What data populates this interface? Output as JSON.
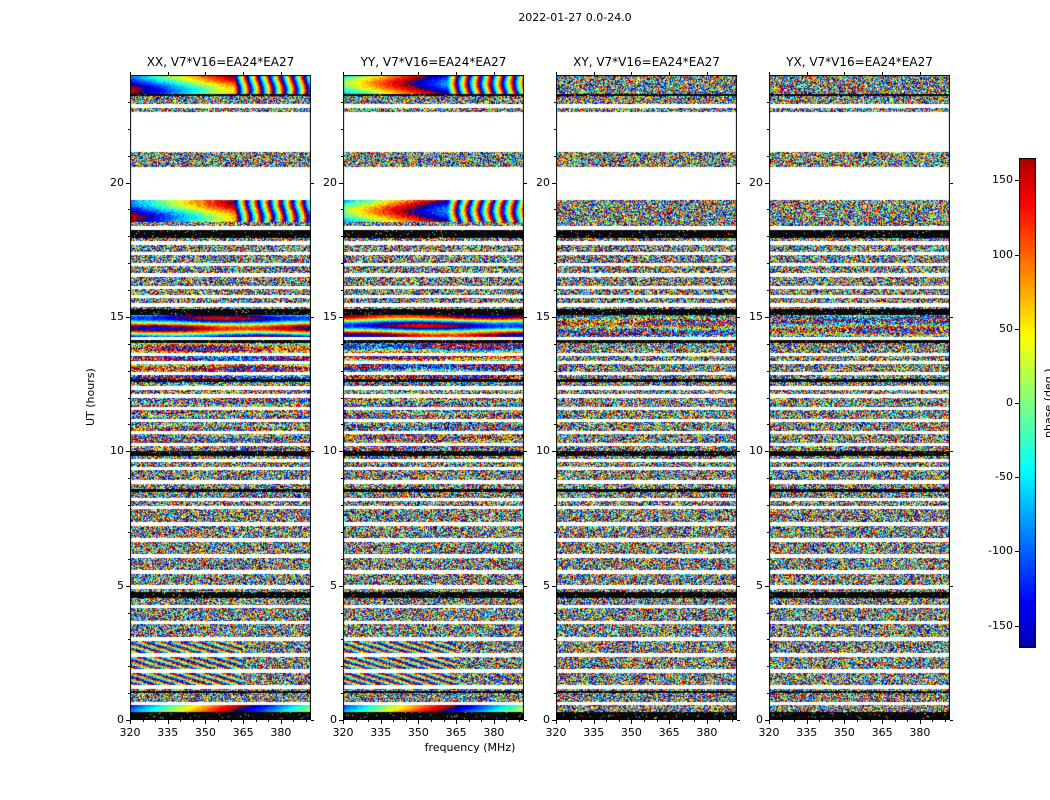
{
  "chart_data": {
    "type": "heatmap",
    "title": "2022-01-27 0.0-24.0",
    "xlabel": "frequency (MHz)",
    "ylabel": "UT (hours)",
    "xlim": [
      320,
      392
    ],
    "ylim": [
      0.0,
      24.0
    ],
    "x_ticks": [
      320,
      335,
      350,
      365,
      380
    ],
    "x_minor_step": 5,
    "y_ticks": [
      0,
      5,
      10,
      15,
      20
    ],
    "y_minor_step": 1,
    "panels": [
      {
        "id": "XX",
        "title": "XX, V7*V16=EA24*EA27"
      },
      {
        "id": "YY",
        "title": "YY, V7*V16=EA24*EA27"
      },
      {
        "id": "XY",
        "title": "XY, V7*V16=EA24*EA27"
      },
      {
        "id": "YX",
        "title": "YX, V7*V16=EA24*EA27"
      }
    ],
    "colorbar": {
      "label": "phase (deg.)",
      "ticks": [
        150,
        100,
        50,
        0,
        -50,
        -100,
        -150
      ],
      "vmin": -165,
      "vmax": 165,
      "colormap": "jet"
    },
    "features": {
      "gaps": [
        [
          21.13,
          22.62
        ],
        [
          19.35,
          20.57
        ]
      ],
      "thin_gaps": [
        0.62,
        1.22,
        1.82,
        2.42,
        3.02,
        3.62,
        4.22,
        4.95,
        5.5,
        6.1,
        6.7,
        7.3,
        7.9,
        8.2,
        8.85,
        9.35,
        9.65,
        10.25,
        10.7,
        11.15,
        11.6,
        12.05,
        12.35,
        12.9,
        13.3,
        13.6,
        14.2,
        15.45,
        15.75,
        16.1,
        16.55,
        16.95,
        17.35,
        17.75,
        18.3,
        22.85
      ],
      "black_rows": [
        [
          23.26,
          0.08
        ],
        [
          18.08,
          0.28
        ],
        [
          15.18,
          0.2
        ],
        [
          14.08,
          0.12
        ],
        [
          12.62,
          0.12
        ],
        [
          9.92,
          0.16
        ],
        [
          8.55,
          0.12
        ],
        [
          4.66,
          0.22
        ],
        [
          1.04,
          0.1
        ],
        [
          0.13,
          0.3
        ]
      ],
      "bands": [
        {
          "t0": 23.3,
          "t1": 24.0,
          "type": "sweep",
          "fringe": true,
          "pols": [
            "XX",
            "YY"
          ],
          "coherence": 0.9
        },
        {
          "t0": 18.53,
          "t1": 19.35,
          "type": "sweep",
          "fringe": true,
          "pols": [
            "XX",
            "YY"
          ],
          "coherence": 0.85
        },
        {
          "t0": 14.25,
          "t1": 15.1,
          "type": "streaks",
          "pols": [
            "XX",
            "YY"
          ],
          "coherence": 0.85
        },
        {
          "t0": 14.25,
          "t1": 15.1,
          "type": "streaks",
          "pols": [
            "XY",
            "YX"
          ],
          "coherence": 0.3
        },
        {
          "t0": 12.7,
          "t1": 14.25,
          "type": "streaks",
          "pols": [
            "XX",
            "YY"
          ],
          "coherence": 0.45
        },
        {
          "t0": 10.1,
          "t1": 12.6,
          "type": "streaks",
          "pols": [
            "XX",
            "YY"
          ],
          "coherence": 0.22
        },
        {
          "t0": 1.1,
          "t1": 2.9,
          "type": "fringes",
          "pols": [
            "XX",
            "YY"
          ],
          "coherence": 0.6
        },
        {
          "t0": 0.26,
          "t1": 0.56,
          "type": "sweep",
          "fringe": false,
          "pols": [
            "XX",
            "YY"
          ],
          "coherence": 0.95
        }
      ],
      "noise": {
        "white_speckle": 0.04,
        "black_speckle": 0.035
      }
    }
  }
}
